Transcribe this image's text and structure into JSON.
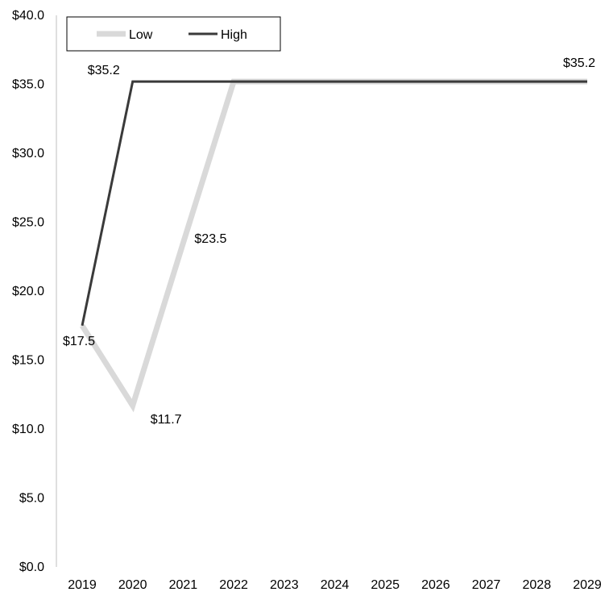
{
  "chart_data": {
    "type": "line",
    "x": [
      "2019",
      "2020",
      "2021",
      "2022",
      "2023",
      "2024",
      "2025",
      "2026",
      "2027",
      "2028",
      "2029"
    ],
    "series": [
      {
        "name": "Low",
        "color": "#d9d9d9",
        "values": [
          17.5,
          11.7,
          23.5,
          35.2,
          35.2,
          35.2,
          35.2,
          35.2,
          35.2,
          35.2,
          35.2
        ]
      },
      {
        "name": "High",
        "color": "#3a3a3a",
        "values": [
          17.5,
          35.2,
          35.2,
          35.2,
          35.2,
          35.2,
          35.2,
          35.2,
          35.2,
          35.2,
          35.2
        ]
      }
    ],
    "y_ticks": [
      "$0.0",
      "$5.0",
      "$10.0",
      "$15.0",
      "$20.0",
      "$25.0",
      "$30.0",
      "$35.0",
      "$40.0"
    ],
    "ylim": [
      0,
      40
    ],
    "grid": false,
    "legend_position": "top-left",
    "data_labels": [
      {
        "series": "Low",
        "x": "2019",
        "value": 17.5,
        "text": "$17.5"
      },
      {
        "series": "Low",
        "x": "2020",
        "value": 11.7,
        "text": "$11.7"
      },
      {
        "series": "Low",
        "x": "2021",
        "value": 23.5,
        "text": "$23.5"
      },
      {
        "series": "High",
        "x": "2020",
        "value": 35.2,
        "text": "$35.2"
      },
      {
        "series": "High",
        "x": "2029",
        "value": 35.2,
        "text": "$35.2"
      }
    ]
  }
}
